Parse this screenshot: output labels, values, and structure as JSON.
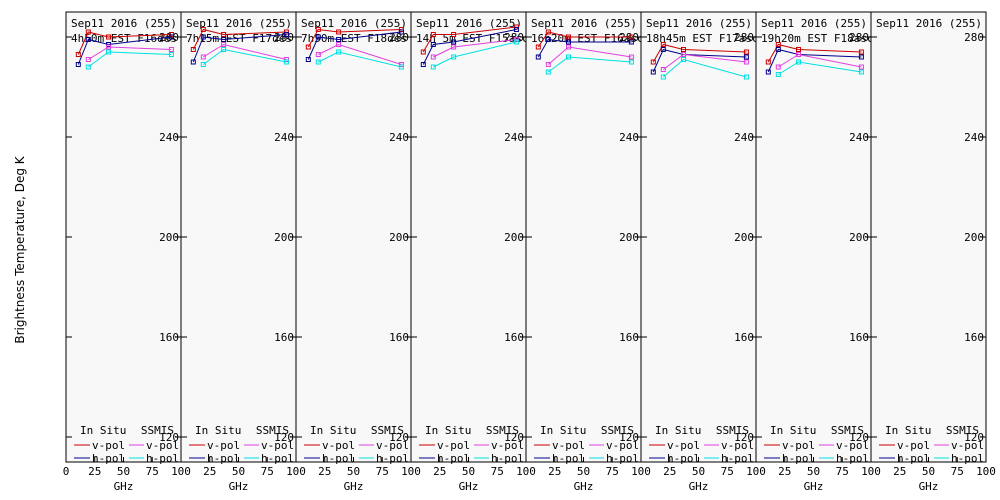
{
  "chart_data": {
    "type": "line",
    "ylabel": "Brightness Temperature, Deg K",
    "xlabel": "GHz",
    "xlim": [
      0,
      100
    ],
    "ylim": [
      110,
      290
    ],
    "yticks": [
      120,
      160,
      200,
      240,
      280
    ],
    "xticks": [
      0,
      25,
      50,
      75,
      100
    ],
    "legend": {
      "in_situ": "In Situ",
      "ssmis": "SSMIS",
      "vpol": "v-pol",
      "hpol": "h-pol"
    },
    "colors": {
      "insitu_v": "#cc0000",
      "insitu_h": "#00008b",
      "ssmis_v": "#e040e0",
      "ssmis_h": "#00e0e0"
    },
    "frequencies_ghz": [
      10.7,
      19.35,
      37,
      91.65
    ],
    "panels": [
      {
        "title_line1": "Sep11 2016 (255)",
        "title_line2": "4h50m EST F16des",
        "series": [
          {
            "name": "In Situ v-pol",
            "values": [
              273,
              282,
              280,
              281
            ]
          },
          {
            "name": "In Situ h-pol",
            "values": [
              269,
              279,
              277,
              280
            ]
          },
          {
            "name": "SSMIS v-pol",
            "values": [
              null,
              271,
              276,
              275
            ]
          },
          {
            "name": "SSMIS h-pol",
            "values": [
              null,
              268,
              274,
              273
            ]
          }
        ]
      },
      {
        "title_line1": "Sep11 2016 (255)",
        "title_line2": "7h15m EST F17des",
        "series": [
          {
            "name": "In Situ v-pol",
            "values": [
              275,
              283,
              281,
              282
            ]
          },
          {
            "name": "In Situ h-pol",
            "values": [
              270,
              280,
              279,
              281
            ]
          },
          {
            "name": "SSMIS v-pol",
            "values": [
              null,
              272,
              277,
              271
            ]
          },
          {
            "name": "SSMIS h-pol",
            "values": [
              null,
              269,
              275,
              270
            ]
          }
        ]
      },
      {
        "title_line1": "Sep11 2016 (255)",
        "title_line2": "7h50m EST F18des",
        "series": [
          {
            "name": "In Situ v-pol",
            "values": [
              276,
              283,
              282,
              283
            ]
          },
          {
            "name": "In Situ h-pol",
            "values": [
              271,
              280,
              279,
              282
            ]
          },
          {
            "name": "SSMIS v-pol",
            "values": [
              null,
              273,
              277,
              269
            ]
          },
          {
            "name": "SSMIS h-pol",
            "values": [
              null,
              270,
              274,
              268
            ]
          }
        ]
      },
      {
        "title_line1": "Sep11 2016 (255)",
        "title_line2": "14h 5m EST F15asc",
        "series": [
          {
            "name": "In Situ v-pol",
            "values": [
              274,
              281,
              281,
              284
            ]
          },
          {
            "name": "In Situ h-pol",
            "values": [
              269,
              277,
              278,
              283
            ]
          },
          {
            "name": "SSMIS v-pol",
            "values": [
              null,
              272,
              276,
              279
            ]
          },
          {
            "name": "SSMIS h-pol",
            "values": [
              null,
              268,
              272,
              278
            ]
          }
        ]
      },
      {
        "title_line1": "Sep11 2016 (255)",
        "title_line2": "16h20m EST F16asc",
        "series": [
          {
            "name": "In Situ v-pol",
            "values": [
              276,
              282,
              280,
              280
            ]
          },
          {
            "name": "In Situ h-pol",
            "values": [
              272,
              279,
              278,
              278
            ]
          },
          {
            "name": "SSMIS v-pol",
            "values": [
              null,
              269,
              276,
              272
            ]
          },
          {
            "name": "SSMIS h-pol",
            "values": [
              null,
              266,
              272,
              270
            ]
          }
        ]
      },
      {
        "title_line1": "Sep11 2016 (255)",
        "title_line2": "18h45m EST F17asc",
        "series": [
          {
            "name": "In Situ v-pol",
            "values": [
              270,
              277,
              275,
              274
            ]
          },
          {
            "name": "In Situ h-pol",
            "values": [
              266,
              275,
              273,
              272
            ]
          },
          {
            "name": "SSMIS v-pol",
            "values": [
              null,
              267,
              273,
              270
            ]
          },
          {
            "name": "SSMIS h-pol",
            "values": [
              null,
              264,
              271,
              264
            ]
          }
        ]
      },
      {
        "title_line1": "Sep11 2016 (255)",
        "title_line2": "19h20m EST F18asc",
        "series": [
          {
            "name": "In Situ v-pol",
            "values": [
              270,
              277,
              275,
              274
            ]
          },
          {
            "name": "In Situ h-pol",
            "values": [
              266,
              275,
              273,
              272
            ]
          },
          {
            "name": "SSMIS v-pol",
            "values": [
              null,
              268,
              273,
              268
            ]
          },
          {
            "name": "SSMIS h-pol",
            "values": [
              null,
              265,
              270,
              266
            ]
          }
        ]
      },
      {
        "title_line1": "Sep11 2016 (255)",
        "title_line2": "",
        "series": []
      }
    ]
  }
}
